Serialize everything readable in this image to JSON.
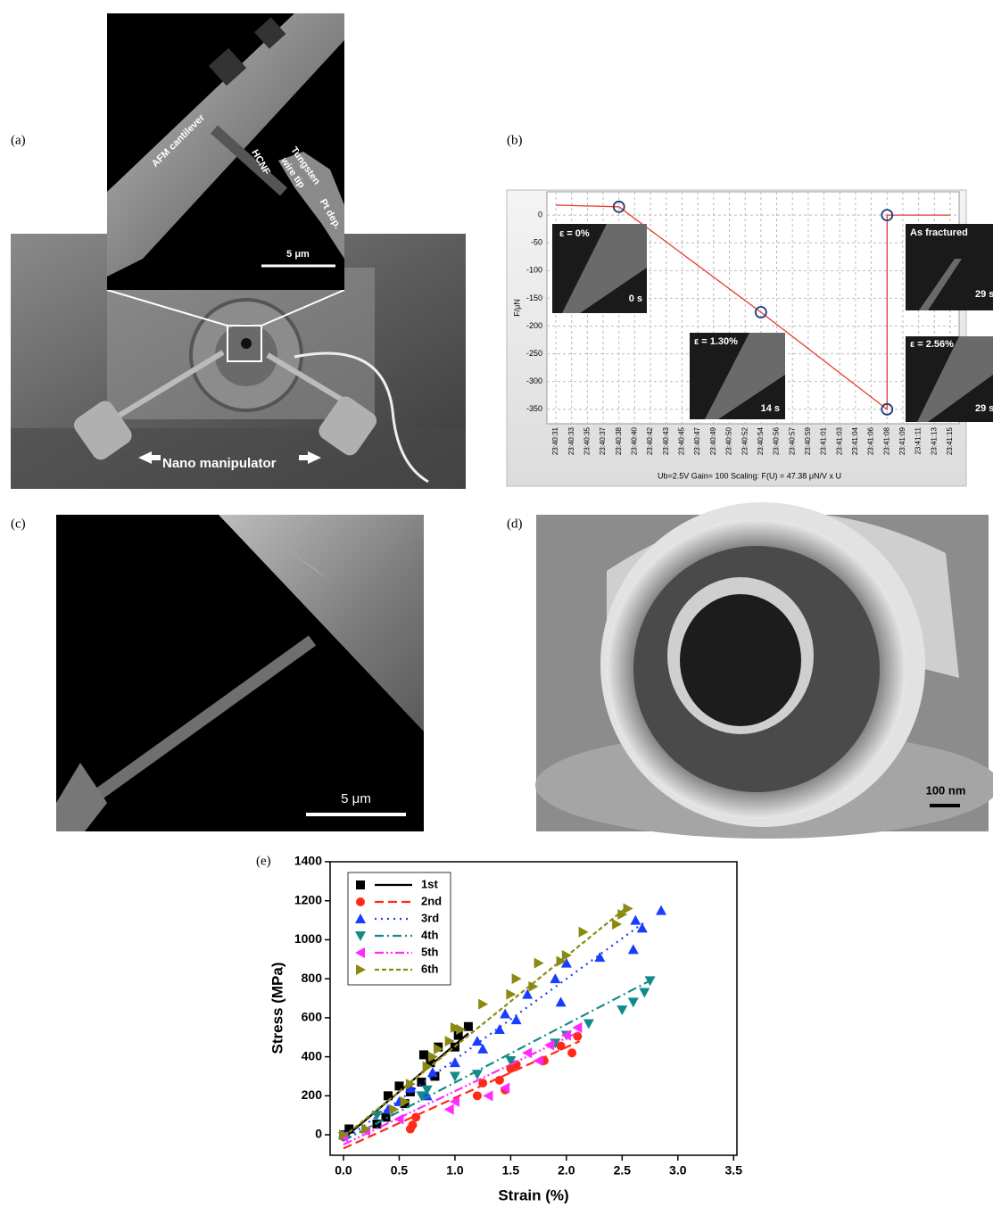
{
  "panels": {
    "a": {
      "label": "(a)",
      "annotations": [
        "AFM cantilever",
        "HCNF",
        "Tungsten",
        "wire tip",
        "Pt dep.",
        "5 μm",
        "Nano manipulator"
      ]
    },
    "b": {
      "label": "(b)"
    },
    "c": {
      "label": "(c)",
      "annotations": [
        "5 μm"
      ]
    },
    "d": {
      "label": "(d)",
      "annotations": [
        "100 nm"
      ]
    },
    "e": {
      "label": "(e)"
    }
  },
  "chart_data": [
    {
      "type": "line",
      "ylabel": "F/μN",
      "caption": "Ub=2.5V  Gain= 100   Scaling: F(U) = 47.38 μN/V  x U",
      "categories": [
        "23:40:31",
        "23:40:33",
        "23:40:35",
        "23:40:37",
        "23:40:38",
        "23:40:40",
        "23:40:42",
        "23:40:43",
        "23:40:45",
        "23:40:47",
        "23:40:49",
        "23:40:50",
        "23:40:52",
        "23:40:54",
        "23:40:56",
        "23:40:57",
        "23:40:59",
        "23:41:01",
        "23:41:03",
        "23:41:04",
        "23:41:06",
        "23:41:08",
        "23:41:09",
        "23:41:11",
        "23:41:13",
        "23:41:15"
      ],
      "ylim": [
        -376,
        42
      ],
      "yticks": [
        0,
        -50,
        -100,
        -150,
        -200,
        -250,
        -300,
        -350
      ],
      "grid": true,
      "series": [
        {
          "mode": "line",
          "color": "#e8392b",
          "x": [
            "23:40:31",
            "23:40:38",
            "23:40:54",
            "23:41:08",
            "23:41:08",
            "23:41:15"
          ],
          "values": [
            18,
            15,
            -175,
            -350,
            0,
            0
          ]
        },
        {
          "mode": "marker",
          "color": "#1f3a7a",
          "x": [
            "23:40:38",
            "23:40:54",
            "23:41:08",
            "23:41:08"
          ],
          "values": [
            15,
            -175,
            -350,
            0
          ]
        }
      ],
      "insets": [
        {
          "label": "ε = 0%",
          "time": "0 s"
        },
        {
          "label": "ε = 1.30%",
          "time": "14 s"
        },
        {
          "label": "As fractured",
          "time": "29 s"
        },
        {
          "label": "ε = 2.56%",
          "time": "29 s"
        }
      ]
    },
    {
      "type": "scatter",
      "xlabel": "Strain (%)",
      "ylabel": "Stress (MPa)",
      "xlim": [
        -0.12,
        3.53
      ],
      "ylim": [
        -105,
        1400
      ],
      "xticks": [
        {
          "value": 0,
          "label": "0.0"
        },
        0.5,
        {
          "value": 1,
          "label": "1.0"
        },
        1.5,
        {
          "value": 2,
          "label": "2.0"
        },
        2.5,
        {
          "value": 3,
          "label": "3.0"
        },
        3.5
      ],
      "yticks": [
        0,
        200,
        400,
        600,
        800,
        1000,
        1200,
        1400
      ],
      "legend": "upper left",
      "series": [
        {
          "name": "1st",
          "color": "#000000",
          "marker": "square",
          "dash": "solid",
          "x": [
            0.0,
            0.05,
            0.3,
            0.38,
            0.4,
            0.5,
            0.55,
            0.6,
            0.7,
            0.72,
            0.78,
            0.82,
            0.85,
            1.0,
            1.03,
            1.12
          ],
          "values": [
            0,
            30,
            55,
            90,
            200,
            250,
            160,
            220,
            270,
            410,
            370,
            300,
            450,
            450,
            510,
            555
          ],
          "fit": {
            "x": [
              0,
              1.12
            ],
            "values": [
              -20,
              520
            ]
          }
        },
        {
          "name": "2nd",
          "color": "#ff2a1a",
          "marker": "circle",
          "dash": "dashed",
          "x": [
            0.0,
            0.6,
            0.62,
            0.65,
            1.2,
            1.25,
            1.4,
            1.45,
            1.5,
            1.55,
            1.8,
            1.95,
            2.05,
            2.1
          ],
          "values": [
            -10,
            30,
            50,
            90,
            200,
            265,
            280,
            230,
            340,
            360,
            380,
            455,
            420,
            505
          ],
          "fit": {
            "x": [
              0,
              2.12
            ],
            "values": [
              -70,
              480
            ]
          }
        },
        {
          "name": "3rd",
          "color": "#1a3cff",
          "marker": "up",
          "dash": "dotted",
          "x": [
            0.0,
            0.4,
            0.5,
            0.6,
            0.75,
            0.8,
            1.0,
            1.2,
            1.25,
            1.4,
            1.45,
            1.55,
            1.65,
            1.9,
            1.95,
            2.0,
            2.3,
            2.6,
            2.62,
            2.68,
            2.85
          ],
          "values": [
            0,
            130,
            170,
            240,
            200,
            320,
            370,
            480,
            440,
            540,
            620,
            590,
            720,
            800,
            680,
            880,
            910,
            950,
            1100,
            1060,
            1150
          ],
          "fit": {
            "x": [
              0,
              2.7
            ],
            "values": [
              -30,
              1090
            ]
          }
        },
        {
          "name": "4th",
          "color": "#138a8a",
          "marker": "down",
          "dash": "dashdot",
          "x": [
            0.0,
            0.3,
            0.7,
            0.75,
            1.0,
            1.2,
            1.5,
            1.9,
            2.0,
            2.2,
            2.5,
            2.6,
            2.7,
            2.75
          ],
          "values": [
            -10,
            100,
            200,
            230,
            300,
            310,
            380,
            470,
            510,
            570,
            640,
            680,
            730,
            790
          ],
          "fit": {
            "x": [
              0,
              2.75
            ],
            "values": [
              -30,
              790
            ]
          }
        },
        {
          "name": "5th",
          "color": "#ff2aff",
          "marker": "left",
          "dash": "dashdotdot",
          "x": [
            0.0,
            0.2,
            0.5,
            0.95,
            1.0,
            1.3,
            1.45,
            1.65,
            1.75,
            1.85,
            2.0,
            2.1
          ],
          "values": [
            -10,
            20,
            80,
            130,
            170,
            200,
            240,
            420,
            380,
            460,
            510,
            550
          ],
          "fit": {
            "x": [
              0,
              2.12
            ],
            "values": [
              -50,
              530
            ]
          }
        },
        {
          "name": "6th",
          "color": "#8a8a10",
          "marker": "right",
          "dash": "shortdash",
          "x": [
            0.0,
            0.2,
            0.45,
            0.55,
            0.6,
            0.75,
            0.8,
            0.85,
            0.95,
            1.0,
            1.05,
            1.25,
            1.5,
            1.55,
            1.7,
            1.75,
            1.95,
            2.0,
            2.15,
            2.45,
            2.5,
            2.55
          ],
          "values": [
            0,
            30,
            130,
            170,
            260,
            350,
            400,
            440,
            480,
            550,
            540,
            670,
            720,
            800,
            760,
            880,
            890,
            920,
            1040,
            1080,
            1130,
            1160
          ],
          "fit": {
            "x": [
              0,
              2.55
            ],
            "values": [
              -10,
              1170
            ]
          }
        }
      ]
    }
  ]
}
